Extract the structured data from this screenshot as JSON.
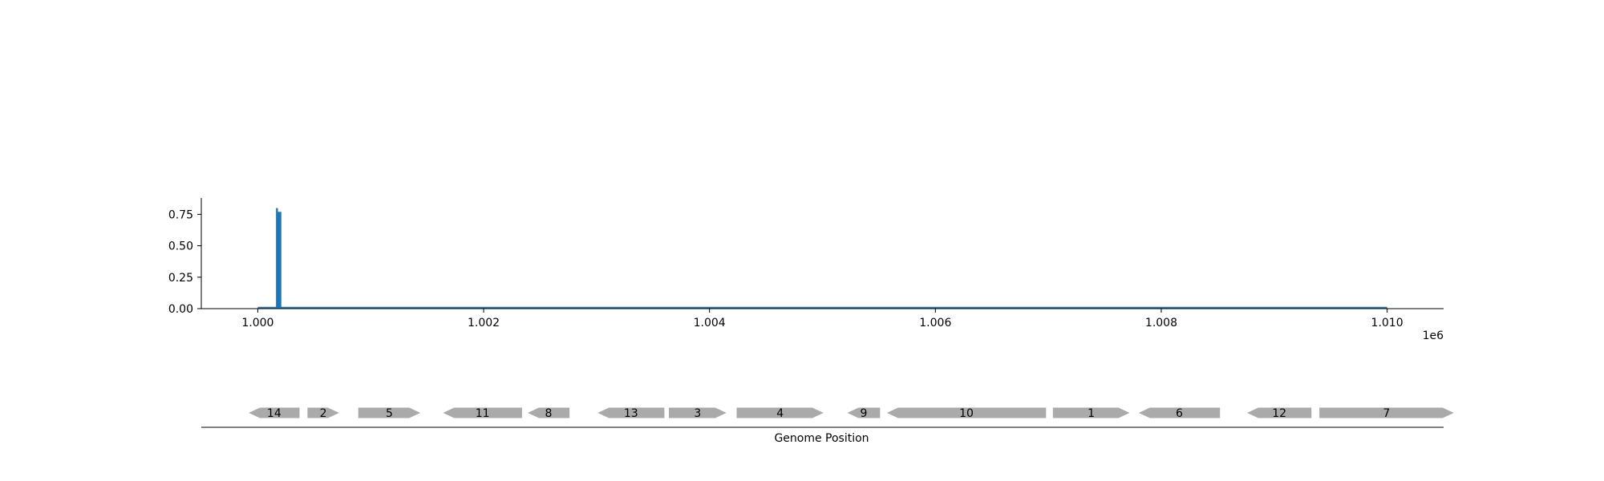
{
  "chart_data": {
    "type": "bar",
    "colors": {
      "signal": "#1f77b4",
      "gene": "#aaaaaa",
      "axis": "#000000"
    },
    "signal": {
      "x_range": [
        999500,
        1010500
      ],
      "ylim": [
        0,
        0.88
      ],
      "y_ticks": [
        {
          "value": 0.0,
          "label": "0.00"
        },
        {
          "value": 0.25,
          "label": "0.25"
        },
        {
          "value": 0.5,
          "label": "0.50"
        },
        {
          "value": 0.75,
          "label": "0.75"
        }
      ],
      "x_ticks": [
        {
          "value": 1000000,
          "label": "1.000"
        },
        {
          "value": 1002000,
          "label": "1.002"
        },
        {
          "value": 1004000,
          "label": "1.004"
        },
        {
          "value": 1006000,
          "label": "1.006"
        },
        {
          "value": 1008000,
          "label": "1.008"
        },
        {
          "value": 1010000,
          "label": "1.010"
        }
      ],
      "offset_label": "1e6",
      "baseline": [
        1000000,
        1010000
      ],
      "bars": [
        {
          "x": 1000170,
          "value": 0.8
        },
        {
          "x": 1000185,
          "value": 0.77
        },
        {
          "x": 1000200,
          "value": 0.77
        }
      ]
    },
    "genes": [
      {
        "label": "14",
        "start": 999920,
        "end": 1000370,
        "strand": "-"
      },
      {
        "label": "2",
        "start": 1000440,
        "end": 1000720,
        "strand": "+"
      },
      {
        "label": "5",
        "start": 1000890,
        "end": 1001440,
        "strand": "+"
      },
      {
        "label": "11",
        "start": 1001640,
        "end": 1002340,
        "strand": "-"
      },
      {
        "label": "8",
        "start": 1002390,
        "end": 1002760,
        "strand": "-"
      },
      {
        "label": "13",
        "start": 1003010,
        "end": 1003600,
        "strand": "-"
      },
      {
        "label": "3",
        "start": 1003640,
        "end": 1004150,
        "strand": "+"
      },
      {
        "label": "4",
        "start": 1004240,
        "end": 1005010,
        "strand": "+"
      },
      {
        "label": "9",
        "start": 1005220,
        "end": 1005510,
        "strand": "-"
      },
      {
        "label": "10",
        "start": 1005570,
        "end": 1006980,
        "strand": "-"
      },
      {
        "label": "1",
        "start": 1007040,
        "end": 1007720,
        "strand": "+"
      },
      {
        "label": "6",
        "start": 1007800,
        "end": 1008520,
        "strand": "-"
      },
      {
        "label": "12",
        "start": 1008760,
        "end": 1009330,
        "strand": "-"
      },
      {
        "label": "7",
        "start": 1009400,
        "end": 1010590,
        "strand": "+"
      }
    ],
    "xlabel": "Genome Position"
  }
}
